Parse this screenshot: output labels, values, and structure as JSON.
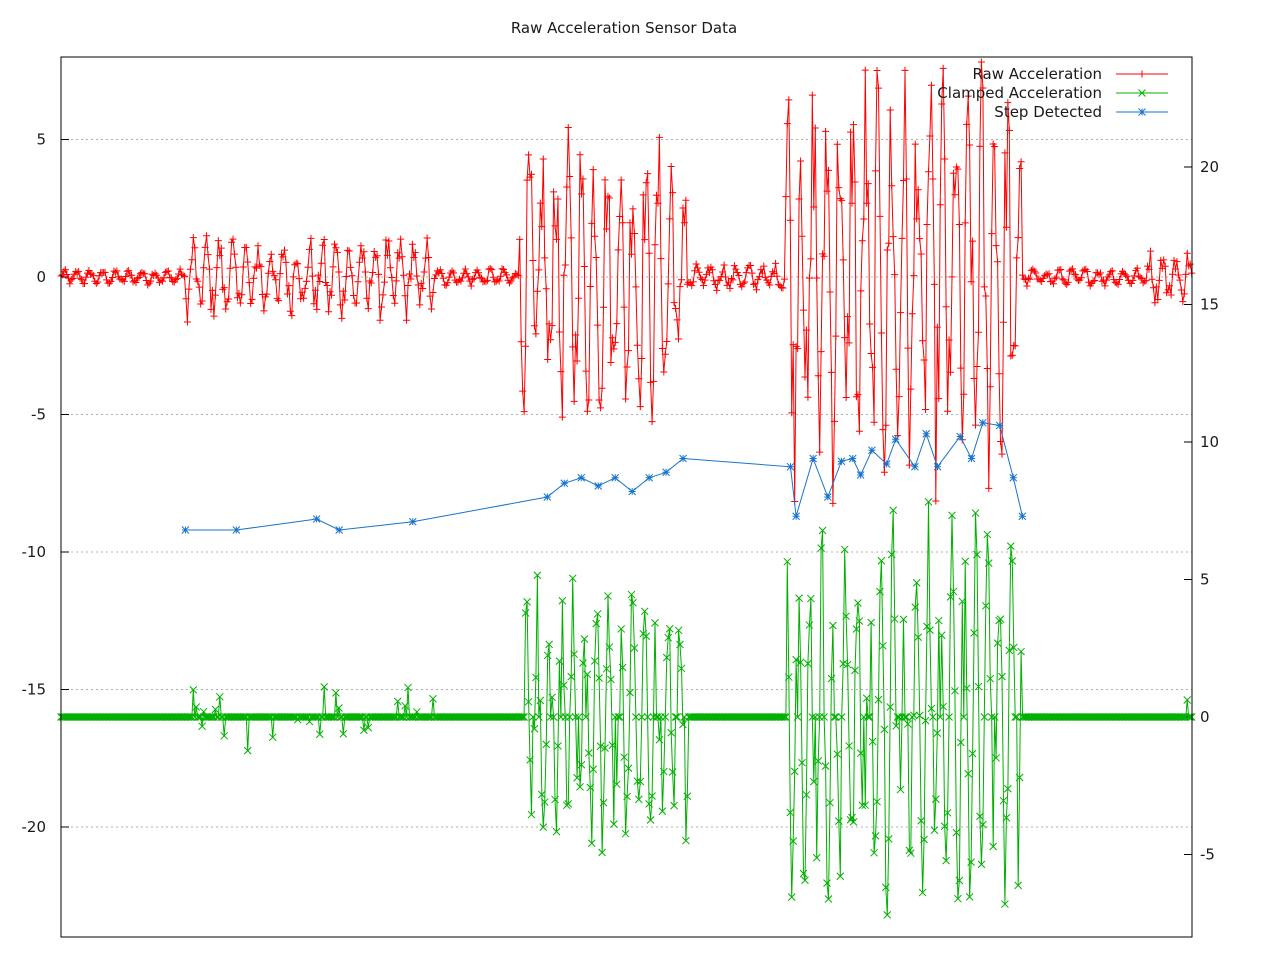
{
  "chart_data": {
    "type": "line",
    "title": "Raw Acceleration Sensor Data",
    "xlabel": "",
    "ylabel": "",
    "y2label": "",
    "x_range": [
      0,
      1000
    ],
    "ylim": [
      -24,
      8
    ],
    "y2lim": [
      -8,
      24
    ],
    "y_ticks": [
      5,
      0,
      -5,
      -10,
      -15,
      -20
    ],
    "y2_ticks": [
      20,
      15,
      10,
      5,
      0,
      -5
    ],
    "grid": true,
    "legend_position": "top-right",
    "series": [
      {
        "name": "Raw Acceleration",
        "axis": "y1",
        "color": "#ff0000",
        "marker": "plus",
        "segments": [
          {
            "from": 0,
            "to": 110,
            "amplitude": 0.25
          },
          {
            "from": 110,
            "to": 330,
            "amplitude": 1.4
          },
          {
            "from": 330,
            "to": 405,
            "amplitude": 0.3
          },
          {
            "from": 405,
            "to": 555,
            "amplitude": 4.6
          },
          {
            "from": 555,
            "to": 640,
            "amplitude": 0.45
          },
          {
            "from": 640,
            "to": 850,
            "amplitude": 7.0
          },
          {
            "from": 850,
            "to": 960,
            "amplitude": 0.3
          },
          {
            "from": 960,
            "to": 1000,
            "amplitude": 0.9
          }
        ]
      },
      {
        "name": "Clamped Acceleration",
        "axis": "y2",
        "color": "#00b000",
        "marker": "cross",
        "segments": [
          {
            "from": 110,
            "to": 330,
            "amplitude": 1.5,
            "density": 0.12
          },
          {
            "from": 410,
            "to": 555,
            "amplitude": 5.5,
            "density": 0.75
          },
          {
            "from": 640,
            "to": 850,
            "amplitude": 8.0,
            "density": 0.85
          },
          {
            "from": 993,
            "to": 1000,
            "amplitude": 1.5,
            "density": 0.3
          }
        ]
      },
      {
        "name": "Step Detected",
        "axis": "y2",
        "color": "#1874cd",
        "marker": "star",
        "points": [
          [
            110,
            6.8
          ],
          [
            155,
            6.8
          ],
          [
            226,
            7.2
          ],
          [
            246,
            6.8
          ],
          [
            311,
            7.1
          ],
          [
            430,
            8.0
          ],
          [
            445,
            8.5
          ],
          [
            460,
            8.7
          ],
          [
            475,
            8.4
          ],
          [
            490,
            8.7
          ],
          [
            505,
            8.2
          ],
          [
            520,
            8.7
          ],
          [
            535,
            8.9
          ],
          [
            550,
            9.4
          ],
          [
            645,
            9.1
          ],
          [
            650,
            7.3
          ],
          [
            665,
            9.4
          ],
          [
            678,
            8.0
          ],
          [
            690,
            9.3
          ],
          [
            700,
            9.4
          ],
          [
            707,
            8.8
          ],
          [
            717,
            9.7
          ],
          [
            730,
            9.2
          ],
          [
            738,
            10.1
          ],
          [
            755,
            9.1
          ],
          [
            765,
            10.3
          ],
          [
            775,
            9.1
          ],
          [
            795,
            10.2
          ],
          [
            805,
            9.4
          ],
          [
            815,
            10.7
          ],
          [
            830,
            10.6
          ],
          [
            842,
            8.7
          ],
          [
            850,
            7.3
          ]
        ]
      }
    ]
  }
}
